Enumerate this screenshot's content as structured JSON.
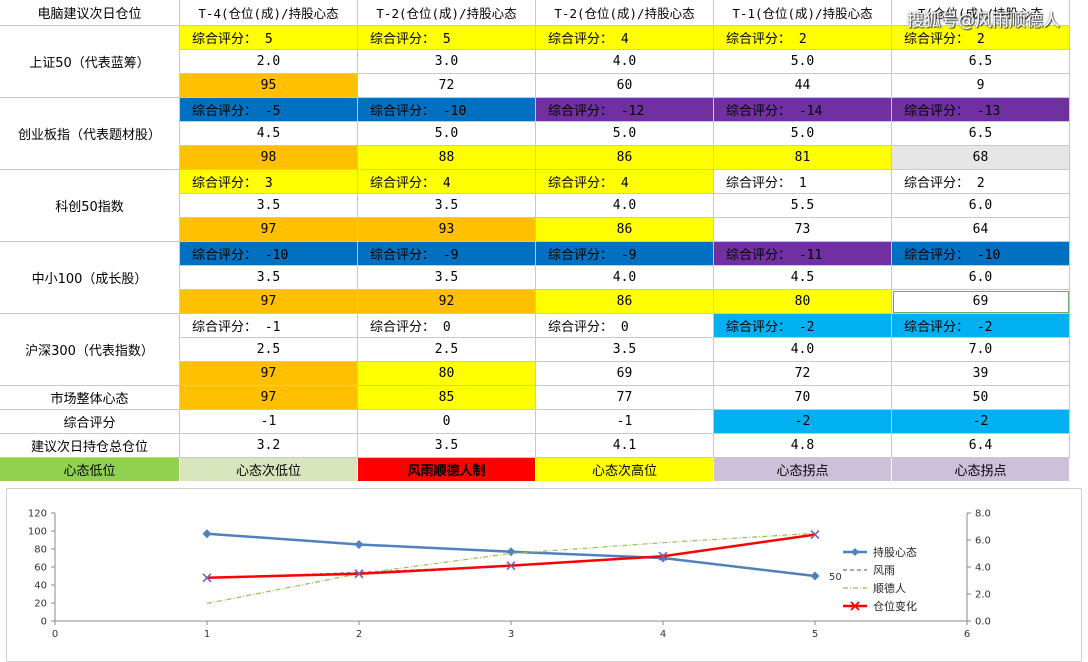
{
  "table": {
    "col_headers": [
      "电脑建议次日仓位",
      "T-4(仓位(成)/持股心态",
      "T-2(仓位(成)/持股心态",
      "T-2(仓位(成)/持股心态",
      "T-1(仓位(成)/持股心态",
      "T(仓位(成)/持股心态"
    ],
    "groups": [
      {
        "label": "上证50（代表蓝筹）",
        "rows": [
          [
            {
              "t": "综合评分： 5",
              "c": "#ffff00",
              "a": "left"
            },
            {
              "t": "综合评分： 5",
              "c": "#ffff00",
              "a": "left"
            },
            {
              "t": "综合评分： 4",
              "c": "#ffff00",
              "a": "left"
            },
            {
              "t": "综合评分： 2",
              "c": "#ffff00",
              "a": "left"
            },
            {
              "t": "综合评分： 2",
              "c": "#ffff00",
              "a": "left"
            }
          ],
          [
            {
              "t": "2.0"
            },
            {
              "t": "3.0"
            },
            {
              "t": "4.0"
            },
            {
              "t": "5.0"
            },
            {
              "t": "6.5"
            }
          ],
          [
            {
              "t": "95",
              "c": "#ffc000"
            },
            {
              "t": "72"
            },
            {
              "t": "60"
            },
            {
              "t": "44"
            },
            {
              "t": "9"
            }
          ]
        ]
      },
      {
        "label": "创业板指（代表题材股）",
        "rows": [
          [
            {
              "t": "综合评分： -5",
              "c": "#0070c0",
              "a": "left"
            },
            {
              "t": "综合评分： -10",
              "c": "#0070c0",
              "a": "left"
            },
            {
              "t": "综合评分： -12",
              "c": "#7030a0",
              "a": "left"
            },
            {
              "t": "综合评分： -14",
              "c": "#7030a0",
              "a": "left"
            },
            {
              "t": "综合评分： -13",
              "c": "#7030a0",
              "a": "left"
            }
          ],
          [
            {
              "t": "4.5"
            },
            {
              "t": "5.0"
            },
            {
              "t": "5.0"
            },
            {
              "t": "5.0"
            },
            {
              "t": "6.5"
            }
          ],
          [
            {
              "t": "98",
              "c": "#ffc000"
            },
            {
              "t": "88",
              "c": "#ffff00"
            },
            {
              "t": "86",
              "c": "#ffff00"
            },
            {
              "t": "81",
              "c": "#ffff00"
            },
            {
              "t": "68",
              "c": "#e6e6e6"
            }
          ]
        ]
      },
      {
        "label": "科创50指数",
        "rows": [
          [
            {
              "t": "综合评分： 3",
              "c": "#ffff00",
              "a": "left"
            },
            {
              "t": "综合评分： 4",
              "c": "#ffff00",
              "a": "left"
            },
            {
              "t": "综合评分： 4",
              "c": "#ffff00",
              "a": "left"
            },
            {
              "t": "综合评分： 1",
              "a": "left"
            },
            {
              "t": "综合评分： 2",
              "a": "left"
            }
          ],
          [
            {
              "t": "3.5"
            },
            {
              "t": "3.5"
            },
            {
              "t": "4.0"
            },
            {
              "t": "5.5"
            },
            {
              "t": "6.0"
            }
          ],
          [
            {
              "t": "97",
              "c": "#ffc000"
            },
            {
              "t": "93",
              "c": "#ffc000"
            },
            {
              "t": "86",
              "c": "#ffff00"
            },
            {
              "t": "73"
            },
            {
              "t": "64"
            }
          ]
        ]
      },
      {
        "label": "中小100（成长股）",
        "rows": [
          [
            {
              "t": "综合评分： -10",
              "c": "#0070c0",
              "a": "left"
            },
            {
              "t": "综合评分： -9",
              "c": "#0070c0",
              "a": "left"
            },
            {
              "t": "综合评分： -9",
              "c": "#0070c0",
              "a": "left"
            },
            {
              "t": "综合评分： -11",
              "c": "#7030a0",
              "a": "left"
            },
            {
              "t": "综合评分： -10",
              "c": "#0070c0",
              "a": "left"
            }
          ],
          [
            {
              "t": "3.5"
            },
            {
              "t": "3.5"
            },
            {
              "t": "4.0"
            },
            {
              "t": "4.5"
            },
            {
              "t": "6.0"
            }
          ],
          [
            {
              "t": "97",
              "c": "#ffc000"
            },
            {
              "t": "92",
              "c": "#ffc000"
            },
            {
              "t": "86",
              "c": "#ffff00"
            },
            {
              "t": "80",
              "c": "#ffff00"
            },
            {
              "t": "69",
              "b": "#6fa86f"
            }
          ]
        ]
      },
      {
        "label": "沪深300（代表指数）",
        "rows": [
          [
            {
              "t": "综合评分： -1",
              "a": "left"
            },
            {
              "t": "综合评分： 0",
              "a": "left"
            },
            {
              "t": "综合评分： 0",
              "a": "left"
            },
            {
              "t": "综合评分： -2",
              "c": "#00b0f0",
              "a": "left"
            },
            {
              "t": "综合评分： -2",
              "c": "#00b0f0",
              "a": "left"
            }
          ],
          [
            {
              "t": "2.5"
            },
            {
              "t": "2.5"
            },
            {
              "t": "3.5"
            },
            {
              "t": "4.0"
            },
            {
              "t": "7.0"
            }
          ],
          [
            {
              "t": "97",
              "c": "#ffc000"
            },
            {
              "t": "80",
              "c": "#ffff00"
            },
            {
              "t": "69"
            },
            {
              "t": "72"
            },
            {
              "t": "39"
            }
          ]
        ]
      }
    ],
    "summary": [
      {
        "label": "市场整体心态",
        "cells": [
          {
            "t": "97",
            "c": "#ffc000"
          },
          {
            "t": "85",
            "c": "#ffff00"
          },
          {
            "t": "77"
          },
          {
            "t": "70"
          },
          {
            "t": "50"
          }
        ]
      },
      {
        "label": "综合评分",
        "cells": [
          {
            "t": "-1"
          },
          {
            "t": "0"
          },
          {
            "t": "-1"
          },
          {
            "t": "-2",
            "c": "#00b0f0"
          },
          {
            "t": "-2",
            "c": "#00b0f0"
          }
        ]
      },
      {
        "label": "建议次日持仓总仓位",
        "cells": [
          {
            "t": "3.2"
          },
          {
            "t": "3.5"
          },
          {
            "t": "4.1"
          },
          {
            "t": "4.8"
          },
          {
            "t": "6.4"
          }
        ]
      }
    ],
    "legend": [
      {
        "t": "心态低位",
        "c": "#92d050"
      },
      {
        "t": "心态次低位",
        "c": "#d8e4bc"
      },
      {
        "t": "风雨顺德人制",
        "c": "#ff0000",
        "bold": true
      },
      {
        "t": "心态次高位",
        "c": "#ffff00"
      },
      {
        "t": "心态拐点",
        "c": "#ccc0da"
      },
      {
        "t": "心态拐点",
        "c": "#ccc0da"
      }
    ]
  },
  "watermark": "搜狐号@风雨顺德人",
  "chart_data": {
    "type": "line",
    "xlim": [
      0,
      6
    ],
    "x_ticks": [
      0,
      1,
      2,
      3,
      4,
      5,
      6
    ],
    "ylim_left": [
      0,
      120
    ],
    "y_ticks_left": [
      0,
      20,
      40,
      60,
      80,
      100,
      120
    ],
    "ylim_right": [
      0,
      8
    ],
    "y_ticks_right": [
      "0.0",
      "2.0",
      "4.0",
      "6.0",
      "8.0"
    ],
    "series": [
      {
        "name": "持股心态",
        "axis": "left",
        "color": "#4f81bd",
        "marker": "diamond",
        "x": [
          1,
          2,
          3,
          4,
          5
        ],
        "y": [
          97,
          85,
          77,
          70,
          50
        ]
      },
      {
        "name": "风雨",
        "axis": "right",
        "color": "#8064a2",
        "marker": "none",
        "dash": "4,3",
        "x": [
          1,
          2,
          3,
          4,
          5
        ],
        "y": [
          3.2,
          3.6,
          4.1,
          4.8,
          6.4
        ]
      },
      {
        "name": "顺德人",
        "axis": "right",
        "color": "#9bbb59",
        "marker": "none",
        "dash": "5,2,1,2",
        "x": [
          1,
          2,
          3,
          4,
          5
        ],
        "y": [
          1.3,
          3.5,
          5.0,
          5.8,
          6.5
        ]
      },
      {
        "name": "仓位变化",
        "axis": "right",
        "color": "#ff0000",
        "marker": "x",
        "x": [
          1,
          2,
          3,
          4,
          5
        ],
        "y": [
          3.2,
          3.5,
          4.1,
          4.8,
          6.4
        ]
      }
    ],
    "data_label": {
      "series": "持股心态",
      "x": 5,
      "text": "50"
    },
    "legend_position": "right"
  }
}
